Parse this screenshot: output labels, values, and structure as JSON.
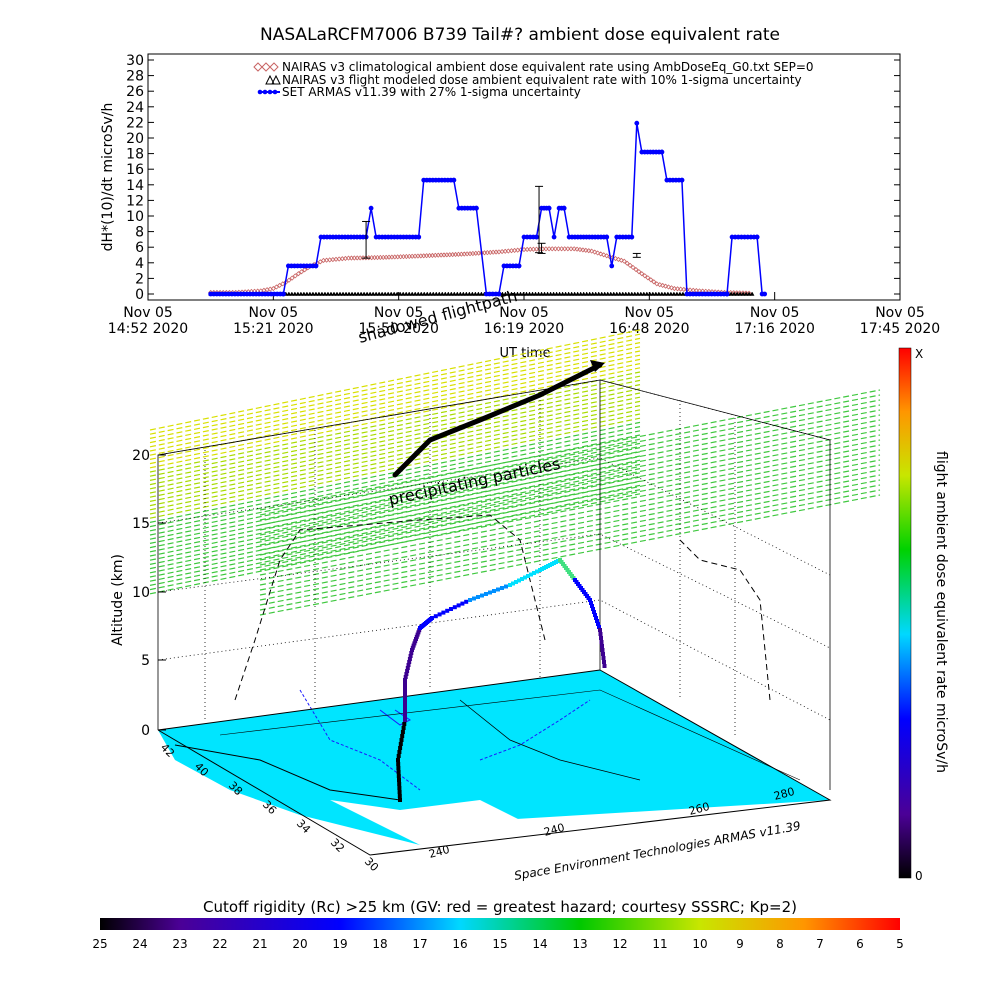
{
  "title": "NASALaRCFM7006  B739 Tail#? ambient dose equivalent rate",
  "colors": {
    "nairas_clim": "#c86464",
    "nairas_model": "#000000",
    "armas": "#0000ff",
    "surface": "#00e5ff"
  },
  "chart_data": [
    {
      "type": "line",
      "ylabel": "dH*(10)/dt microSv/h",
      "xlabel": "UT time",
      "ylim": [
        0,
        30
      ],
      "yticks": [
        "0",
        "2",
        "4",
        "6",
        "8",
        "10",
        "12",
        "14",
        "16",
        "18",
        "20",
        "22",
        "24",
        "26",
        "28",
        "30"
      ],
      "xticks": [
        {
          "date": "Nov 05",
          "time": "14:52 2020"
        },
        {
          "date": "Nov 05",
          "time": "15:21 2020"
        },
        {
          "date": "Nov 05",
          "time": "15:50 2020"
        },
        {
          "date": "Nov 05",
          "time": "16:19 2020"
        },
        {
          "date": "Nov 05",
          "time": "16:48 2020"
        },
        {
          "date": "Nov 05",
          "time": "17:16 2020"
        },
        {
          "date": "Nov 05",
          "time": "17:45 2020"
        }
      ],
      "xlim_minutes_from_1452": [
        0,
        173
      ],
      "series": [
        {
          "name": "NAIRAS v3 climatological ambient dose equivalent rate using AmbDoseEq_G0.txt SEP=0",
          "marker": "diamond",
          "points": [
            [
              25,
              0.2
            ],
            [
              35,
              0.2
            ],
            [
              45,
              0.4
            ],
            [
              50,
              0.7
            ],
            [
              55,
              1.5
            ],
            [
              60,
              2.6
            ],
            [
              65,
              3.6
            ],
            [
              70,
              4.3
            ],
            [
              80,
              4.6
            ],
            [
              95,
              4.7
            ],
            [
              110,
              4.9
            ],
            [
              125,
              5.1
            ],
            [
              140,
              5.4
            ],
            [
              150,
              5.7
            ],
            [
              160,
              5.8
            ],
            [
              170,
              5.8
            ],
            [
              177,
              5.5
            ],
            [
              183,
              4.9
            ],
            [
              190,
              4.2
            ],
            [
              197,
              2.6
            ],
            [
              203,
              1.3
            ],
            [
              210,
              0.7
            ],
            [
              220,
              0.4
            ],
            [
              230,
              0.2
            ],
            [
              241,
              0.1
            ]
          ]
        },
        {
          "name": "NAIRAS v3 flight modeled dose ambient equivalent rate with 10% 1-sigma uncertainty",
          "marker": "triangle",
          "points": [
            [
              25,
              0
            ],
            [
              241,
              0
            ]
          ]
        },
        {
          "name": "SET ARMAS v11.39 with 27% 1-sigma uncertainty",
          "marker": "dot",
          "points": [
            [
              25,
              0
            ],
            [
              54,
              0
            ],
            [
              56,
              3.6
            ],
            [
              67,
              3.6
            ],
            [
              69,
              7.3
            ],
            [
              87,
              7.3
            ],
            [
              89,
              11
            ],
            [
              91,
              7.3
            ],
            [
              108,
              7.3
            ],
            [
              110,
              14.6
            ],
            [
              122,
              14.6
            ],
            [
              124,
              11
            ],
            [
              131,
              11
            ],
            [
              135,
              0
            ],
            [
              140,
              0
            ],
            [
              142,
              3.6
            ],
            [
              148,
              3.6
            ],
            [
              150,
              7.3
            ],
            [
              155,
              7.3
            ],
            [
              157,
              11
            ],
            [
              160,
              11
            ],
            [
              162,
              7.3
            ],
            [
              164,
              11
            ],
            [
              166,
              11
            ],
            [
              168,
              7.3
            ],
            [
              183,
              7.3
            ],
            [
              185,
              3.6
            ],
            [
              187,
              7.3
            ],
            [
              193,
              7.3
            ],
            [
              195,
              21.9
            ],
            [
              197,
              18.2
            ],
            [
              205,
              18.2
            ],
            [
              207,
              14.6
            ],
            [
              213,
              14.6
            ],
            [
              215,
              0
            ],
            [
              231,
              0
            ],
            [
              233,
              7.3
            ],
            [
              243,
              7.3
            ],
            [
              245,
              0
            ],
            [
              246,
              0
            ]
          ]
        }
      ],
      "error_bars": [
        [
          87,
          4.6,
          9.3
        ],
        [
          156,
          5.3,
          13.8
        ],
        [
          157,
          5.2,
          6.5
        ],
        [
          195,
          4.7,
          5.2
        ]
      ],
      "legend_placement": "top"
    },
    {
      "type": "scatter",
      "variant": "3d-flight-path",
      "zlabel": "Altitude (km)",
      "zlim": [
        0,
        20
      ],
      "zticks": [
        "0",
        "5",
        "10",
        "15",
        "20"
      ],
      "lat_ticks": [
        "42",
        "40",
        "38",
        "36",
        "34",
        "32",
        "30"
      ],
      "lon_ticks": [
        "240",
        "240",
        "260",
        "280"
      ],
      "colorbar_label": "flight ambient dose equivalent rate microSv/h",
      "colorbar_ticks": {
        "top": "X",
        "bottom": "0"
      },
      "annotations": [
        "precipitating particles",
        "shadowed flightpath"
      ],
      "credit": "Space Environment Technologies ARMAS v11.39"
    }
  ],
  "cutoff_bar": {
    "title": "Cutoff rigidity (Rc) >25 km (GV: red = greatest hazard; courtesy SSSRC; Kp=2)",
    "ticks": [
      "25",
      "24",
      "23",
      "22",
      "21",
      "20",
      "19",
      "18",
      "17",
      "16",
      "15",
      "14",
      "13",
      "12",
      "11",
      "10",
      "9",
      "8",
      "7",
      "6",
      "5"
    ]
  }
}
